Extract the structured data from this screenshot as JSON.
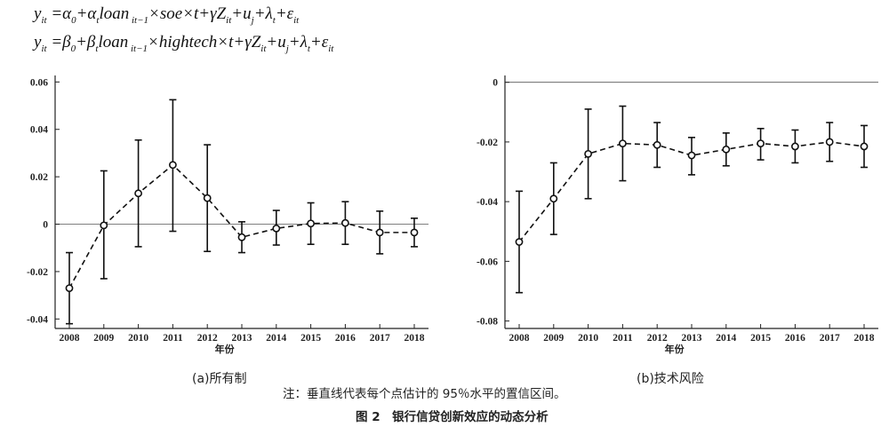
{
  "equations": {
    "eq1": "y_it = α₀ + α_t loan_{it−1} × soe × t + γZ_it + u_j + λ_t + ε_it",
    "eq1_text": "y it = α0 + αt loan it−1 ×soe×t+γZ it+u j+λ t+ε it",
    "eq2_text": "y it = β0 + βt loan it−1 ×hightech×t+γZ it+u j+λ t+ε it"
  },
  "chart_data": [
    {
      "type": "line",
      "caption": "(a)所有制",
      "categories": [
        "2008",
        "2009",
        "2010",
        "2011",
        "2012",
        "2013",
        "2014",
        "2015",
        "2016",
        "2017",
        "2018"
      ],
      "series": [
        {
          "values": [
            -0.027,
            -0.0005,
            0.013,
            0.025,
            0.011,
            -0.0055,
            -0.0018,
            0.0003,
            0.0005,
            -0.0035,
            -0.0035
          ],
          "ci_lower": [
            -0.042,
            -0.023,
            -0.0095,
            -0.003,
            -0.0115,
            -0.012,
            -0.0088,
            -0.0085,
            -0.0085,
            -0.0125,
            -0.0095
          ],
          "ci_upper": [
            -0.012,
            0.0225,
            0.0355,
            0.0525,
            0.0335,
            0.001,
            0.0058,
            0.009,
            0.0095,
            0.0055,
            0.0025
          ]
        }
      ],
      "yticks": [
        "-0.04",
        "-0.02",
        "0",
        "0.02",
        "0.04",
        "0.06"
      ],
      "ytick_values": [
        -0.04,
        -0.02,
        0,
        0.02,
        0.04,
        0.06
      ],
      "ylim": [
        -0.044,
        0.0605
      ],
      "xlabel": "年份",
      "ylabel": "",
      "zero_line": true
    },
    {
      "type": "line",
      "caption": "(b)技术风险",
      "categories": [
        "2008",
        "2009",
        "2010",
        "2011",
        "2012",
        "2013",
        "2014",
        "2015",
        "2016",
        "2017",
        "2018"
      ],
      "series": [
        {
          "values": [
            -0.0535,
            -0.039,
            -0.024,
            -0.0205,
            -0.021,
            -0.0245,
            -0.0225,
            -0.0205,
            -0.0215,
            -0.02,
            -0.0215
          ],
          "ci_lower": [
            -0.0705,
            -0.051,
            -0.039,
            -0.033,
            -0.0285,
            -0.031,
            -0.028,
            -0.026,
            -0.027,
            -0.0265,
            -0.0285
          ],
          "ci_upper": [
            -0.0365,
            -0.027,
            -0.009,
            -0.008,
            -0.0135,
            -0.0185,
            -0.017,
            -0.0155,
            -0.016,
            -0.0135,
            -0.0145
          ]
        }
      ],
      "yticks": [
        "-0.08",
        "-0.06",
        "-0.04",
        "-0.02",
        "0"
      ],
      "ytick_values": [
        -0.08,
        -0.06,
        -0.04,
        -0.02,
        0
      ],
      "ylim": [
        -0.0825,
        0.0005
      ],
      "xlabel": "年份",
      "ylabel": "",
      "zero_line": true
    }
  ],
  "note": "注：垂直线代表每个点估计的 95％水平的置信区间。",
  "figure_title": "图 2　银行信贷创新效应的动态分析"
}
